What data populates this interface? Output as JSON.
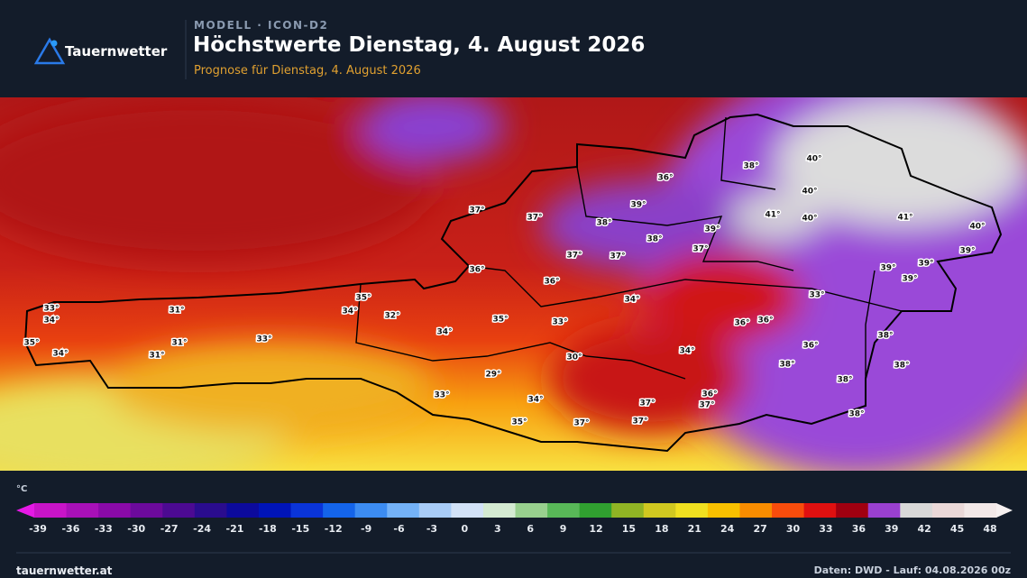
{
  "header": {
    "brand": "Tauernwetter",
    "kicker": "MODELL · ICON-D2",
    "title": "Höchstwerte Dienstag, 4. August 2026",
    "subtitle": "Prognose für Dienstag, 4. August 2026"
  },
  "map": {
    "labels": [
      "33°",
      "34°",
      "35°",
      "34°",
      "31°",
      "31°",
      "31°",
      "33°",
      "35°",
      "34°",
      "32°",
      "34°",
      "35°",
      "36°",
      "37°",
      "37°",
      "38°",
      "39°",
      "36°",
      "38°",
      "40°",
      "40°",
      "41°",
      "40°",
      "41°",
      "40°",
      "39°",
      "39°",
      "38°",
      "37°",
      "37°",
      "37°",
      "36°",
      "33°",
      "34°",
      "33°",
      "36°",
      "36°",
      "36°",
      "34°",
      "30°",
      "29°",
      "38°",
      "38°",
      "38°",
      "38°",
      "39°",
      "39°",
      "39°",
      "38°",
      "33°",
      "34°",
      "35°",
      "37°",
      "37°",
      "37°",
      "36°",
      "37°"
    ]
  },
  "legend": {
    "unit": "°C",
    "ticks": [
      -39,
      -36,
      -33,
      -30,
      -27,
      -24,
      -21,
      -18,
      -15,
      -12,
      -9,
      -6,
      -3,
      0,
      3,
      6,
      9,
      12,
      15,
      18,
      21,
      24,
      27,
      30,
      33,
      36,
      39,
      42,
      45,
      48
    ],
    "colors": [
      "#c814c8",
      "#a810b8",
      "#8a0aa8",
      "#6c0a9c",
      "#4c0a92",
      "#2a0c8e",
      "#0c0a9c",
      "#0014b8",
      "#0a34d8",
      "#1464ea",
      "#3c8cf2",
      "#74b2f8",
      "#a8ccf8",
      "#d2e2f8",
      "#d4ead2",
      "#98d08e",
      "#58b858",
      "#30a030",
      "#90b424",
      "#d0c820",
      "#f0e020",
      "#f8c000",
      "#f88c00",
      "#f84c0c",
      "#e01010",
      "#a00010",
      "#9a40d0",
      "#d8d8d8",
      "#ead8d8",
      "#f2e8e8"
    ]
  },
  "footer": {
    "site": "tauernwetter.at",
    "credits": "Daten: DWD - Lauf: 04.08.2026 00z"
  }
}
